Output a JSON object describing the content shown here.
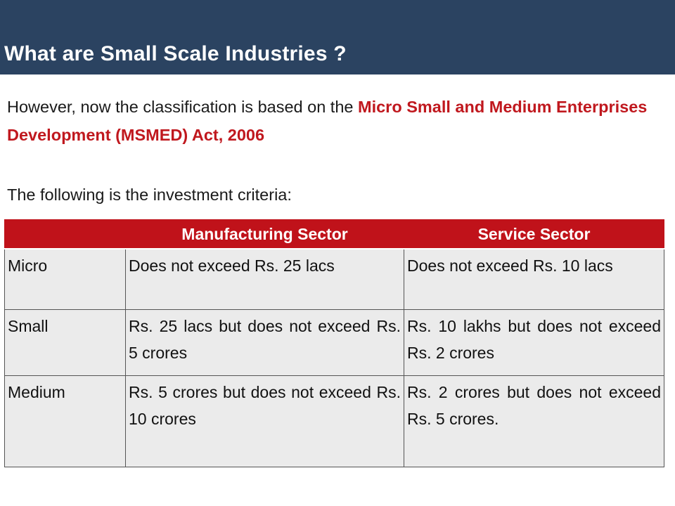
{
  "slide": {
    "title": "What are Small Scale Industries ?",
    "intro_before": "However, now the classification is based on the ",
    "intro_highlight": "Micro Small and Medium Enterprises Development (MSMED) Act, 2006",
    "criteria_line": "The following is the investment criteria:"
  },
  "table": {
    "headers": [
      "",
      "Manufacturing Sector",
      "Service Sector"
    ],
    "rows": [
      {
        "size": "Micro",
        "manufacturing": "Does not exceed Rs. 25 lacs",
        "service": "Does not exceed Rs. 10 lacs"
      },
      {
        "size": "Small",
        "manufacturing": "Rs. 25 lacs but does not exceed Rs. 5 crores",
        "service": "Rs. 10 lakhs but does not exceed Rs. 2 crores"
      },
      {
        "size": "Medium",
        "manufacturing": "Rs. 5 crores but does not exceed Rs. 10 crores",
        "service": "Rs. 2 crores but does not exceed Rs. 5 crores."
      }
    ]
  },
  "colors": {
    "title_bar": "#2b4361",
    "highlight_text": "#c0181e",
    "table_header": "#c0121a",
    "table_cell": "#ebebeb"
  }
}
